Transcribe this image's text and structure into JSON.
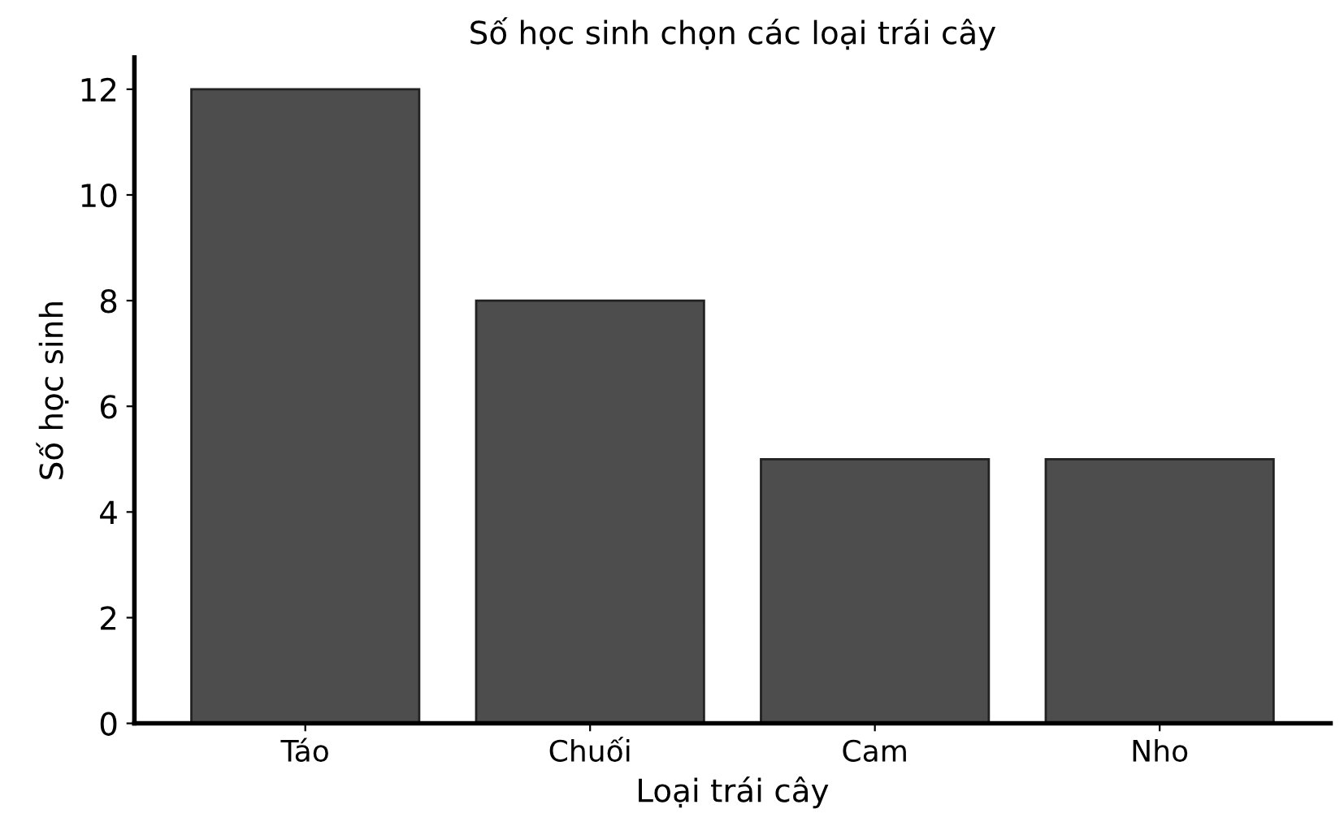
{
  "chart_data": {
    "type": "bar",
    "title": "Số học sinh chọn các loại trái cây",
    "xlabel": "Loại trái cây",
    "ylabel": "Số học sinh",
    "categories": [
      "Táo",
      "Chuối",
      "Cam",
      "Nho"
    ],
    "values": [
      12,
      8,
      5,
      5
    ],
    "color": "#4d4d4d",
    "ylim": [
      0,
      12.6
    ],
    "yticks": [
      0,
      2,
      4,
      6,
      8,
      10,
      12
    ],
    "grid": false
  }
}
